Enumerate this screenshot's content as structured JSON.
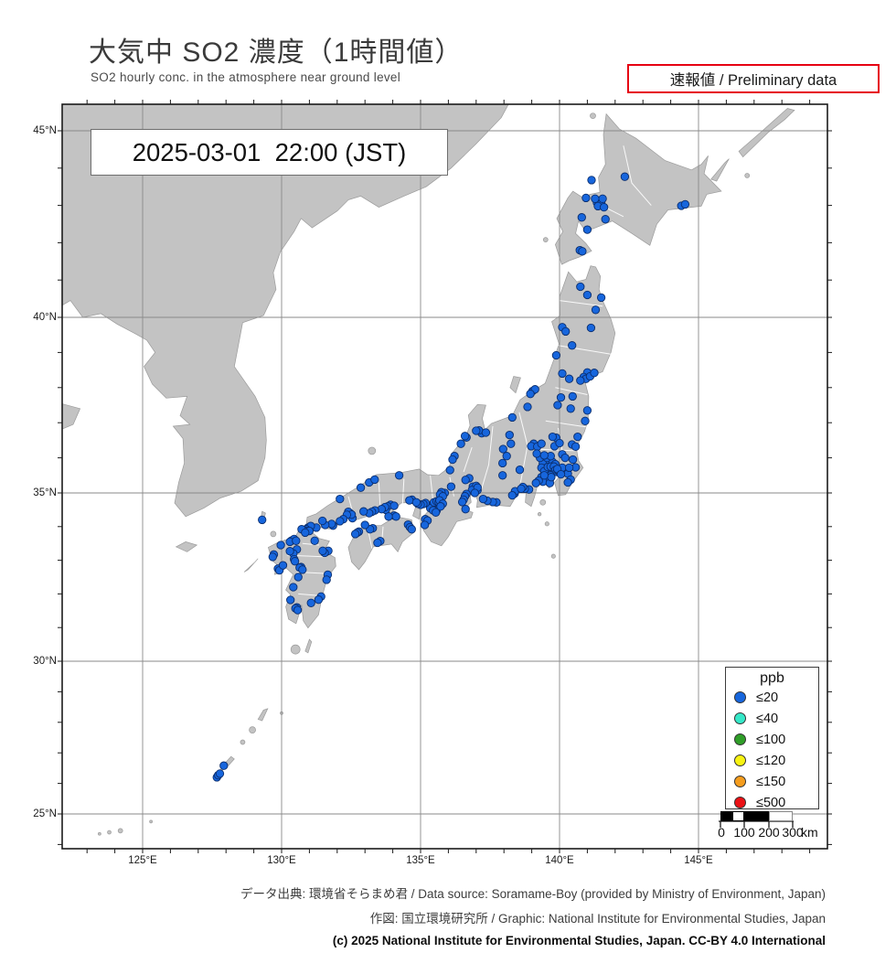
{
  "header": {
    "title": "大気中 SO2 濃度（1時間値）",
    "subtitle": "SO2 hourly conc. in the atmosphere near ground level",
    "preliminary_label": "速報値 / Preliminary data",
    "timestamp": "2025-03-01  22:00 (JST)"
  },
  "map": {
    "lat_tick_values": [
      45,
      40,
      35,
      30,
      25
    ],
    "lat_tick_labels": [
      "45°N",
      "40°N",
      "35°N",
      "30°N",
      "25°N"
    ],
    "lon_tick_values": [
      125,
      130,
      135,
      140,
      145
    ],
    "lon_tick_labels": [
      "125°E",
      "130°E",
      "135°E",
      "140°E",
      "145°E"
    ],
    "land_color": "#c3c3c3",
    "sea_color": "#ffffff",
    "grid_color": "#8a8a8a"
  },
  "legend": {
    "title": "ppb",
    "items": [
      {
        "label": "≤20",
        "color": "#1766dd"
      },
      {
        "label": "≤40",
        "color": "#35e8c8"
      },
      {
        "label": "≤100",
        "color": "#2f9e28"
      },
      {
        "label": "≤120",
        "color": "#f8f312"
      },
      {
        "label": "≤150",
        "color": "#f59d1e"
      },
      {
        "label": "≤500",
        "color": "#ea1115"
      }
    ]
  },
  "scalebar": {
    "labels": [
      "0",
      "100",
      "200",
      "300"
    ],
    "unit": "km"
  },
  "footer": {
    "line1": "データ出典: 環境省そらまめ君 / Data source: Soramame-Boy (provided by Ministry of Environment, Japan)",
    "line2": "作図: 国立環境研究所 / Graphic: National Institute for Environmental Studies, Japan",
    "line3": "(c) 2025 National Institute for Environmental Studies, Japan. CC-BY 4.0 International"
  },
  "chart_data": {
    "type": "scatter",
    "title": "大気中 SO2 濃度（1時間値） 2025-03-01 22:00 JST",
    "unit": "ppb",
    "lon_range": [
      122.1,
      149.6
    ],
    "lat_range": [
      23.9,
      45.8
    ],
    "series": [
      {
        "name": "SO2 ≤20 ppb stations",
        "color": "#1766dd",
        "points": [
          [
            142.35,
            43.77
          ],
          [
            141.35,
            43.07
          ],
          [
            141.42,
            43.12
          ],
          [
            141.5,
            43.05
          ],
          [
            141.38,
            42.98
          ],
          [
            141.55,
            43.18
          ],
          [
            141.28,
            43.18
          ],
          [
            141.6,
            42.95
          ],
          [
            141.65,
            42.63
          ],
          [
            141.0,
            42.35
          ],
          [
            140.8,
            42.68
          ],
          [
            140.73,
            41.8
          ],
          [
            140.82,
            41.77
          ],
          [
            144.38,
            42.99
          ],
          [
            144.52,
            43.03
          ],
          [
            141.15,
            43.68
          ],
          [
            140.95,
            43.2
          ],
          [
            140.75,
            40.82
          ],
          [
            141.0,
            40.6
          ],
          [
            141.5,
            40.53
          ],
          [
            141.3,
            40.2
          ],
          [
            141.13,
            39.7
          ],
          [
            140.1,
            39.72
          ],
          [
            140.22,
            39.6
          ],
          [
            140.45,
            39.2
          ],
          [
            139.88,
            38.92
          ],
          [
            141.0,
            38.43
          ],
          [
            140.87,
            38.3
          ],
          [
            140.95,
            38.25
          ],
          [
            141.1,
            38.32
          ],
          [
            140.75,
            38.2
          ],
          [
            141.25,
            38.42
          ],
          [
            140.35,
            38.25
          ],
          [
            140.1,
            38.4
          ],
          [
            140.47,
            37.75
          ],
          [
            140.4,
            37.4
          ],
          [
            140.92,
            37.05
          ],
          [
            141.0,
            37.35
          ],
          [
            139.93,
            37.5
          ],
          [
            140.05,
            37.72
          ],
          [
            139.03,
            37.9
          ],
          [
            139.12,
            37.95
          ],
          [
            138.95,
            37.82
          ],
          [
            138.85,
            37.45
          ],
          [
            138.3,
            37.15
          ],
          [
            137.2,
            36.7
          ],
          [
            137.1,
            36.78
          ],
          [
            137.35,
            36.72
          ],
          [
            137.0,
            36.77
          ],
          [
            136.65,
            36.58
          ],
          [
            136.6,
            36.62
          ],
          [
            136.45,
            36.4
          ],
          [
            136.22,
            36.05
          ],
          [
            136.15,
            35.95
          ],
          [
            136.06,
            35.65
          ],
          [
            139.07,
            36.4
          ],
          [
            138.98,
            36.33
          ],
          [
            139.2,
            36.32
          ],
          [
            139.35,
            36.4
          ],
          [
            139.88,
            36.57
          ],
          [
            139.75,
            36.6
          ],
          [
            139.82,
            36.33
          ],
          [
            140.0,
            36.42
          ],
          [
            140.45,
            36.38
          ],
          [
            140.58,
            36.32
          ],
          [
            140.65,
            36.6
          ],
          [
            140.1,
            36.1
          ],
          [
            140.2,
            36.0
          ],
          [
            140.48,
            35.95
          ],
          [
            139.62,
            35.9
          ],
          [
            139.5,
            35.88
          ],
          [
            139.4,
            35.85
          ],
          [
            139.65,
            35.85
          ],
          [
            139.75,
            35.88
          ],
          [
            139.85,
            35.82
          ],
          [
            139.3,
            36.0
          ],
          [
            139.18,
            36.12
          ],
          [
            139.55,
            36.0
          ],
          [
            139.68,
            36.05
          ],
          [
            139.45,
            36.07
          ],
          [
            139.7,
            35.69
          ],
          [
            139.75,
            35.7
          ],
          [
            139.65,
            35.7
          ],
          [
            139.6,
            35.68
          ],
          [
            139.78,
            35.68
          ],
          [
            139.82,
            35.7
          ],
          [
            139.7,
            35.63
          ],
          [
            139.76,
            35.62
          ],
          [
            139.65,
            35.6
          ],
          [
            139.55,
            35.65
          ],
          [
            139.47,
            35.7
          ],
          [
            139.4,
            35.7
          ],
          [
            139.35,
            35.72
          ],
          [
            139.5,
            35.6
          ],
          [
            139.45,
            35.62
          ],
          [
            139.58,
            35.74
          ],
          [
            139.68,
            35.75
          ],
          [
            139.8,
            35.75
          ],
          [
            139.85,
            35.65
          ],
          [
            139.9,
            35.6
          ],
          [
            139.95,
            35.63
          ],
          [
            140.0,
            35.6
          ],
          [
            140.1,
            35.6
          ],
          [
            140.12,
            35.65
          ],
          [
            140.3,
            35.55
          ],
          [
            140.1,
            35.72
          ],
          [
            139.92,
            35.68
          ],
          [
            140.05,
            35.53
          ],
          [
            140.4,
            35.38
          ],
          [
            140.3,
            35.3
          ],
          [
            140.58,
            35.73
          ],
          [
            140.35,
            35.72
          ],
          [
            139.62,
            35.45
          ],
          [
            139.68,
            35.5
          ],
          [
            139.65,
            35.38
          ],
          [
            139.55,
            35.35
          ],
          [
            139.6,
            35.33
          ],
          [
            139.5,
            35.45
          ],
          [
            139.35,
            35.45
          ],
          [
            139.4,
            35.32
          ],
          [
            139.25,
            35.35
          ],
          [
            139.15,
            35.28
          ],
          [
            139.65,
            35.28
          ],
          [
            139.7,
            35.45
          ],
          [
            139.45,
            35.5
          ],
          [
            138.57,
            35.66
          ],
          [
            138.9,
            35.1
          ],
          [
            138.75,
            35.12
          ],
          [
            138.2,
            36.65
          ],
          [
            138.25,
            36.4
          ],
          [
            137.97,
            36.25
          ],
          [
            138.1,
            36.05
          ],
          [
            137.95,
            35.85
          ],
          [
            137.95,
            35.5
          ],
          [
            138.38,
            34.98
          ],
          [
            138.4,
            35.05
          ],
          [
            138.3,
            34.93
          ],
          [
            138.68,
            35.17
          ],
          [
            138.62,
            35.12
          ],
          [
            137.73,
            34.72
          ],
          [
            137.6,
            34.73
          ],
          [
            137.4,
            34.77
          ],
          [
            137.25,
            34.82
          ],
          [
            137.05,
            35.08
          ],
          [
            136.9,
            35.1
          ],
          [
            136.95,
            35.15
          ],
          [
            136.88,
            35.18
          ],
          [
            137.0,
            35.2
          ],
          [
            136.92,
            35.05
          ],
          [
            136.85,
            35.08
          ],
          [
            137.05,
            35.15
          ],
          [
            136.95,
            35.0
          ],
          [
            136.65,
            34.97
          ],
          [
            136.6,
            34.9
          ],
          [
            136.55,
            34.8
          ],
          [
            136.75,
            35.42
          ],
          [
            136.62,
            35.37
          ],
          [
            136.5,
            34.73
          ],
          [
            136.62,
            34.52
          ],
          [
            136.1,
            35.18
          ],
          [
            135.87,
            35.0
          ],
          [
            135.75,
            35.02
          ],
          [
            135.7,
            34.95
          ],
          [
            135.8,
            34.9
          ],
          [
            135.5,
            34.68
          ],
          [
            135.45,
            34.65
          ],
          [
            135.55,
            34.65
          ],
          [
            135.6,
            34.68
          ],
          [
            135.52,
            34.6
          ],
          [
            135.42,
            34.58
          ],
          [
            135.48,
            34.55
          ],
          [
            135.55,
            34.55
          ],
          [
            135.62,
            34.6
          ],
          [
            135.38,
            34.6
          ],
          [
            135.35,
            34.55
          ],
          [
            135.5,
            34.5
          ],
          [
            135.58,
            34.48
          ],
          [
            135.45,
            34.48
          ],
          [
            135.55,
            34.42
          ],
          [
            135.48,
            34.72
          ],
          [
            135.58,
            34.75
          ],
          [
            135.65,
            34.73
          ],
          [
            135.68,
            34.78
          ],
          [
            135.18,
            34.7
          ],
          [
            135.1,
            34.67
          ],
          [
            135.0,
            34.65
          ],
          [
            134.9,
            34.68
          ],
          [
            134.69,
            34.8
          ],
          [
            134.6,
            34.78
          ],
          [
            134.85,
            34.72
          ],
          [
            135.8,
            34.68
          ],
          [
            135.72,
            34.6
          ],
          [
            135.17,
            34.22
          ],
          [
            135.25,
            34.18
          ],
          [
            135.15,
            34.05
          ],
          [
            133.92,
            34.65
          ],
          [
            133.82,
            34.6
          ],
          [
            134.05,
            34.62
          ],
          [
            133.75,
            34.5
          ],
          [
            133.72,
            34.58
          ],
          [
            133.6,
            34.52
          ],
          [
            133.36,
            34.48
          ],
          [
            133.25,
            34.44
          ],
          [
            133.15,
            34.4
          ],
          [
            132.95,
            34.45
          ],
          [
            132.55,
            34.25
          ],
          [
            132.46,
            34.4
          ],
          [
            132.4,
            34.44
          ],
          [
            132.52,
            34.36
          ],
          [
            132.35,
            34.35
          ],
          [
            132.22,
            34.22
          ],
          [
            132.1,
            34.16
          ],
          [
            131.85,
            34.03
          ],
          [
            131.8,
            34.08
          ],
          [
            131.57,
            34.05
          ],
          [
            131.47,
            34.17
          ],
          [
            131.25,
            33.97
          ],
          [
            130.95,
            33.97
          ],
          [
            131.05,
            34.02
          ],
          [
            133.15,
            35.3
          ],
          [
            133.35,
            35.38
          ],
          [
            132.85,
            35.15
          ],
          [
            134.23,
            35.5
          ],
          [
            132.1,
            34.82
          ],
          [
            134.05,
            34.33
          ],
          [
            134.12,
            34.3
          ],
          [
            133.85,
            34.3
          ],
          [
            133.28,
            33.95
          ],
          [
            133.18,
            33.92
          ],
          [
            133.0,
            34.05
          ],
          [
            132.78,
            33.85
          ],
          [
            132.72,
            33.82
          ],
          [
            132.65,
            33.78
          ],
          [
            133.55,
            33.57
          ],
          [
            133.45,
            33.52
          ],
          [
            134.55,
            34.06
          ],
          [
            134.62,
            33.98
          ],
          [
            134.68,
            33.92
          ],
          [
            130.88,
            33.92
          ],
          [
            130.82,
            33.88
          ],
          [
            130.78,
            33.9
          ],
          [
            130.92,
            33.87
          ],
          [
            130.72,
            33.92
          ],
          [
            131.0,
            33.87
          ],
          [
            130.85,
            33.82
          ],
          [
            130.4,
            33.6
          ],
          [
            130.35,
            33.58
          ],
          [
            130.45,
            33.63
          ],
          [
            130.3,
            33.55
          ],
          [
            130.52,
            33.58
          ],
          [
            130.55,
            33.32
          ],
          [
            130.42,
            33.2
          ],
          [
            130.3,
            33.27
          ],
          [
            130.45,
            33.03
          ],
          [
            130.48,
            32.97
          ],
          [
            129.97,
            33.45
          ],
          [
            129.72,
            33.17
          ],
          [
            129.68,
            33.1
          ],
          [
            129.87,
            32.75
          ],
          [
            129.92,
            32.7
          ],
          [
            130.05,
            32.85
          ],
          [
            130.7,
            32.8
          ],
          [
            130.65,
            32.78
          ],
          [
            130.75,
            32.72
          ],
          [
            130.6,
            32.5
          ],
          [
            130.42,
            32.2
          ],
          [
            131.6,
            33.25
          ],
          [
            131.68,
            33.28
          ],
          [
            131.55,
            33.22
          ],
          [
            131.48,
            33.28
          ],
          [
            131.19,
            33.58
          ],
          [
            131.66,
            32.57
          ],
          [
            131.62,
            32.42
          ],
          [
            131.42,
            31.92
          ],
          [
            131.33,
            31.83
          ],
          [
            131.06,
            31.73
          ],
          [
            130.55,
            31.6
          ],
          [
            130.5,
            31.57
          ],
          [
            130.58,
            31.52
          ],
          [
            130.32,
            31.82
          ],
          [
            129.3,
            34.2
          ],
          [
            127.67,
            26.2
          ],
          [
            127.72,
            26.27
          ],
          [
            127.78,
            26.32
          ],
          [
            127.92,
            26.58
          ]
        ]
      }
    ]
  }
}
